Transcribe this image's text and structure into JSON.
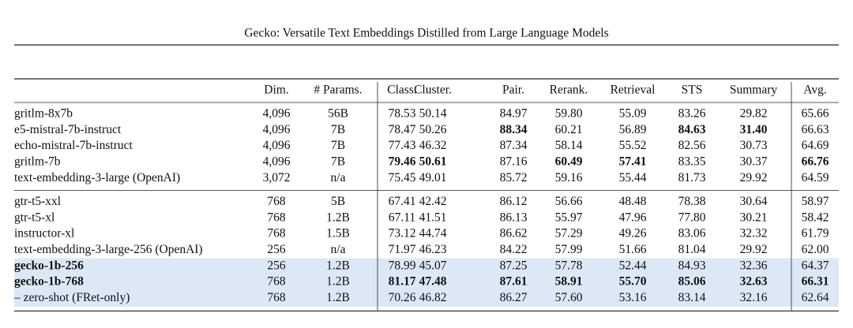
{
  "header": {
    "title": "Gecko: Versatile Text Embeddings Distilled from Large Language Models"
  },
  "table": {
    "columns": [
      "Dim.",
      "# Params.",
      "Class.",
      "Cluster.",
      "Pair.",
      "Rerank.",
      "Retrieval",
      "STS",
      "Summary",
      "Avg."
    ],
    "groups": [
      {
        "rows": [
          {
            "cells": [
              "gritlm-8x7b",
              "4,096",
              "56B",
              "78.53",
              "50.14",
              "84.97",
              "59.80",
              "55.09",
              "83.26",
              "29.82",
              "65.66"
            ]
          },
          {
            "cells": [
              "e5-mistral-7b-instruct",
              "4,096",
              "7B",
              "78.47",
              "50.26",
              "88.34",
              "60.21",
              "56.89",
              "84.63",
              "31.40",
              "66.63"
            ],
            "bold": [
              5,
              8,
              9
            ]
          },
          {
            "cells": [
              "echo-mistral-7b-instruct",
              "4,096",
              "7B",
              "77.43",
              "46.32",
              "87.34",
              "58.14",
              "55.52",
              "82.56",
              "30.73",
              "64.69"
            ]
          },
          {
            "cells": [
              "gritlm-7b",
              "4,096",
              "7B",
              "79.46",
              "50.61",
              "87.16",
              "60.49",
              "57.41",
              "83.35",
              "30.37",
              "66.76"
            ],
            "bold": [
              3,
              4,
              6,
              7,
              10
            ]
          },
          {
            "cells": [
              "text-embedding-3-large (OpenAI)",
              "3,072",
              "n/a",
              "75.45",
              "49.01",
              "85.72",
              "59.16",
              "55.44",
              "81.73",
              "29.92",
              "64.59"
            ]
          }
        ]
      },
      {
        "rows": [
          {
            "cells": [
              "gtr-t5-xxl",
              "768",
              "5B",
              "67.41",
              "42.42",
              "86.12",
              "56.66",
              "48.48",
              "78.38",
              "30.64",
              "58.97"
            ]
          },
          {
            "cells": [
              "gtr-t5-xl",
              "768",
              "1.2B",
              "67.11",
              "41.51",
              "86.13",
              "55.97",
              "47.96",
              "77.80",
              "30.21",
              "58.42"
            ]
          },
          {
            "cells": [
              "instructor-xl",
              "768",
              "1.5B",
              "73.12",
              "44.74",
              "86.62",
              "57.29",
              "49.26",
              "83.06",
              "32.32",
              "61.79"
            ]
          },
          {
            "cells": [
              "text-embedding-3-large-256 (OpenAI)",
              "256",
              "n/a",
              "71.97",
              "46.23",
              "84.22",
              "57.99",
              "51.66",
              "81.04",
              "29.92",
              "62.00"
            ]
          },
          {
            "cells": [
              "gecko-1b-256",
              "256",
              "1.2B",
              "78.99",
              "45.07",
              "87.25",
              "57.78",
              "52.44",
              "84.93",
              "32.36",
              "64.37"
            ],
            "bold": [
              0
            ],
            "highlight": true
          },
          {
            "cells": [
              "gecko-1b-768",
              "768",
              "1.2B",
              "81.17",
              "47.48",
              "87.61",
              "58.91",
              "55.70",
              "85.06",
              "32.63",
              "66.31"
            ],
            "bold": [
              0,
              3,
              4,
              5,
              6,
              7,
              8,
              9,
              10
            ],
            "highlight": true
          },
          {
            "cells": [
              "– zero-shot (FRet-only)",
              "768",
              "1.2B",
              "70.26",
              "46.82",
              "86.27",
              "57.60",
              "53.16",
              "83.14",
              "32.16",
              "62.64"
            ],
            "highlight": true
          }
        ]
      }
    ]
  }
}
